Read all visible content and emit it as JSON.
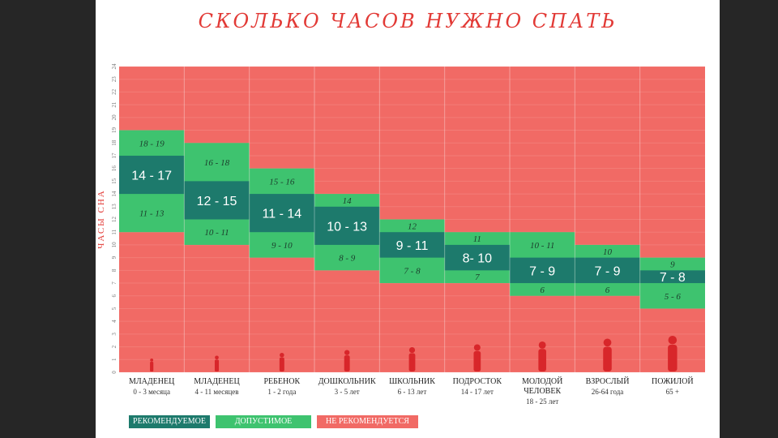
{
  "title": "СКОЛЬКО ЧАСОВ НУЖНО СПАТЬ",
  "colors": {
    "recommended": "#1d7a6c",
    "acceptable": "#3ec36f",
    "not_recommended": "#f16a65",
    "title": "#e23a36"
  },
  "legend": {
    "recommended": "РЕКОМЕНДУЕМОЕ",
    "acceptable": "ДОПУСТИМОЕ",
    "not_recommended": "НЕ РЕКОМЕНДУЕТСЯ"
  },
  "chart_data": {
    "type": "bar",
    "title": "СКОЛЬКО ЧАСОВ НУЖНО СПАТЬ",
    "ylabel": "ЧАСЫ СНА",
    "ylim": [
      0,
      24
    ],
    "yticks": [
      "0",
      "1",
      "2",
      "3",
      "4",
      "5",
      "6",
      "7",
      "8",
      "9",
      "10",
      "11",
      "12",
      "13",
      "14",
      "15",
      "16",
      "17",
      "18",
      "19",
      "20",
      "21",
      "22",
      "23",
      "24"
    ],
    "categories": [
      {
        "name": "МЛАДЕНЕЦ",
        "age": "0 - 3 месяца",
        "acceptable_range": [
          11,
          19
        ],
        "recommended_range": [
          14,
          17
        ],
        "recommended_label": "14 - 17",
        "upper_label": "18 - 19",
        "lower_label": "11 - 13"
      },
      {
        "name": "МЛАДЕНЕЦ",
        "age": "4 - 11 месяцев",
        "acceptable_range": [
          10,
          18
        ],
        "recommended_range": [
          12,
          15
        ],
        "recommended_label": "12 - 15",
        "upper_label": "16 - 18",
        "lower_label": "10 - 11"
      },
      {
        "name": "РЕБЕНОК",
        "age": "1 - 2 года",
        "acceptable_range": [
          9,
          16
        ],
        "recommended_range": [
          11,
          14
        ],
        "recommended_label": "11 - 14",
        "upper_label": "15 - 16",
        "lower_label": "9 - 10"
      },
      {
        "name": "ДОШКОЛЬНИК",
        "age": "3 - 5 лет",
        "acceptable_range": [
          8,
          14
        ],
        "recommended_range": [
          10,
          13
        ],
        "recommended_label": "10 - 13",
        "upper_label": "14",
        "lower_label": "8 - 9"
      },
      {
        "name": "ШКОЛЬНИК",
        "age": "6 - 13 лет",
        "acceptable_range": [
          7,
          12
        ],
        "recommended_range": [
          9,
          11
        ],
        "recommended_label": "9 - 11",
        "upper_label": "12",
        "lower_label": "7 - 8"
      },
      {
        "name": "ПОДРОСТОК",
        "age": "14 - 17 лет",
        "acceptable_range": [
          7,
          11
        ],
        "recommended_range": [
          8,
          10
        ],
        "recommended_label": "8- 10",
        "upper_label": "11",
        "lower_label": "7"
      },
      {
        "name": "МОЛОДОЙ",
        "name2": "ЧЕЛОВЕК",
        "age": "18 - 25 лет",
        "acceptable_range": [
          6,
          11
        ],
        "recommended_range": [
          7,
          9
        ],
        "recommended_label": "7 - 9",
        "upper_label": "10 - 11",
        "lower_label": "6"
      },
      {
        "name": "ВЗРОСЛЫЙ",
        "age": "26-64 года",
        "acceptable_range": [
          6,
          10
        ],
        "recommended_range": [
          7,
          9
        ],
        "recommended_label": "7 - 9",
        "upper_label": "10",
        "lower_label": "6"
      },
      {
        "name": "ПОЖИЛОЙ",
        "age": "65 +",
        "acceptable_range": [
          5,
          9
        ],
        "recommended_range": [
          7,
          8
        ],
        "recommended_label": "7 - 8",
        "upper_label": "9",
        "lower_label": "5 - 6"
      }
    ]
  }
}
